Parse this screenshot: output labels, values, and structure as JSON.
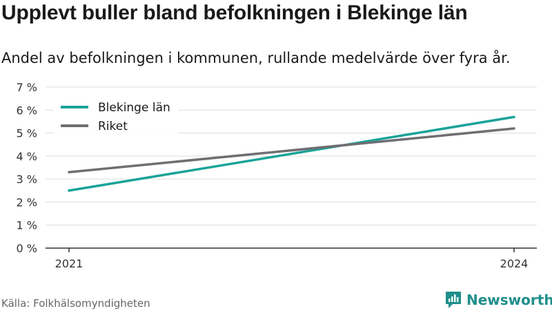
{
  "header": {
    "title": "Upplevt buller bland befolkningen i Blekinge län",
    "subtitle": "Andel av befolkningen i kommunen, rullande medelvärde över fyra år."
  },
  "footer": {
    "source": "Källa: Folkhälsomyndigheten",
    "brand": "Newsworthy",
    "brand_icon": "newsworthy-logo-icon"
  },
  "chart_data": {
    "type": "line",
    "x": [
      "2021",
      "2024"
    ],
    "series": [
      {
        "name": "Blekinge län",
        "values": [
          2.5,
          5.7
        ],
        "color": "#1aa399"
      },
      {
        "name": "Riket",
        "values": [
          3.3,
          5.2
        ],
        "color": "#6f6e73"
      }
    ],
    "yticks": [
      "0 %",
      "1 %",
      "2 %",
      "3 %",
      "4 %",
      "5 %",
      "6 %",
      "7 %"
    ],
    "ylim": [
      0,
      7
    ],
    "grid": true,
    "legend": "top-left"
  }
}
